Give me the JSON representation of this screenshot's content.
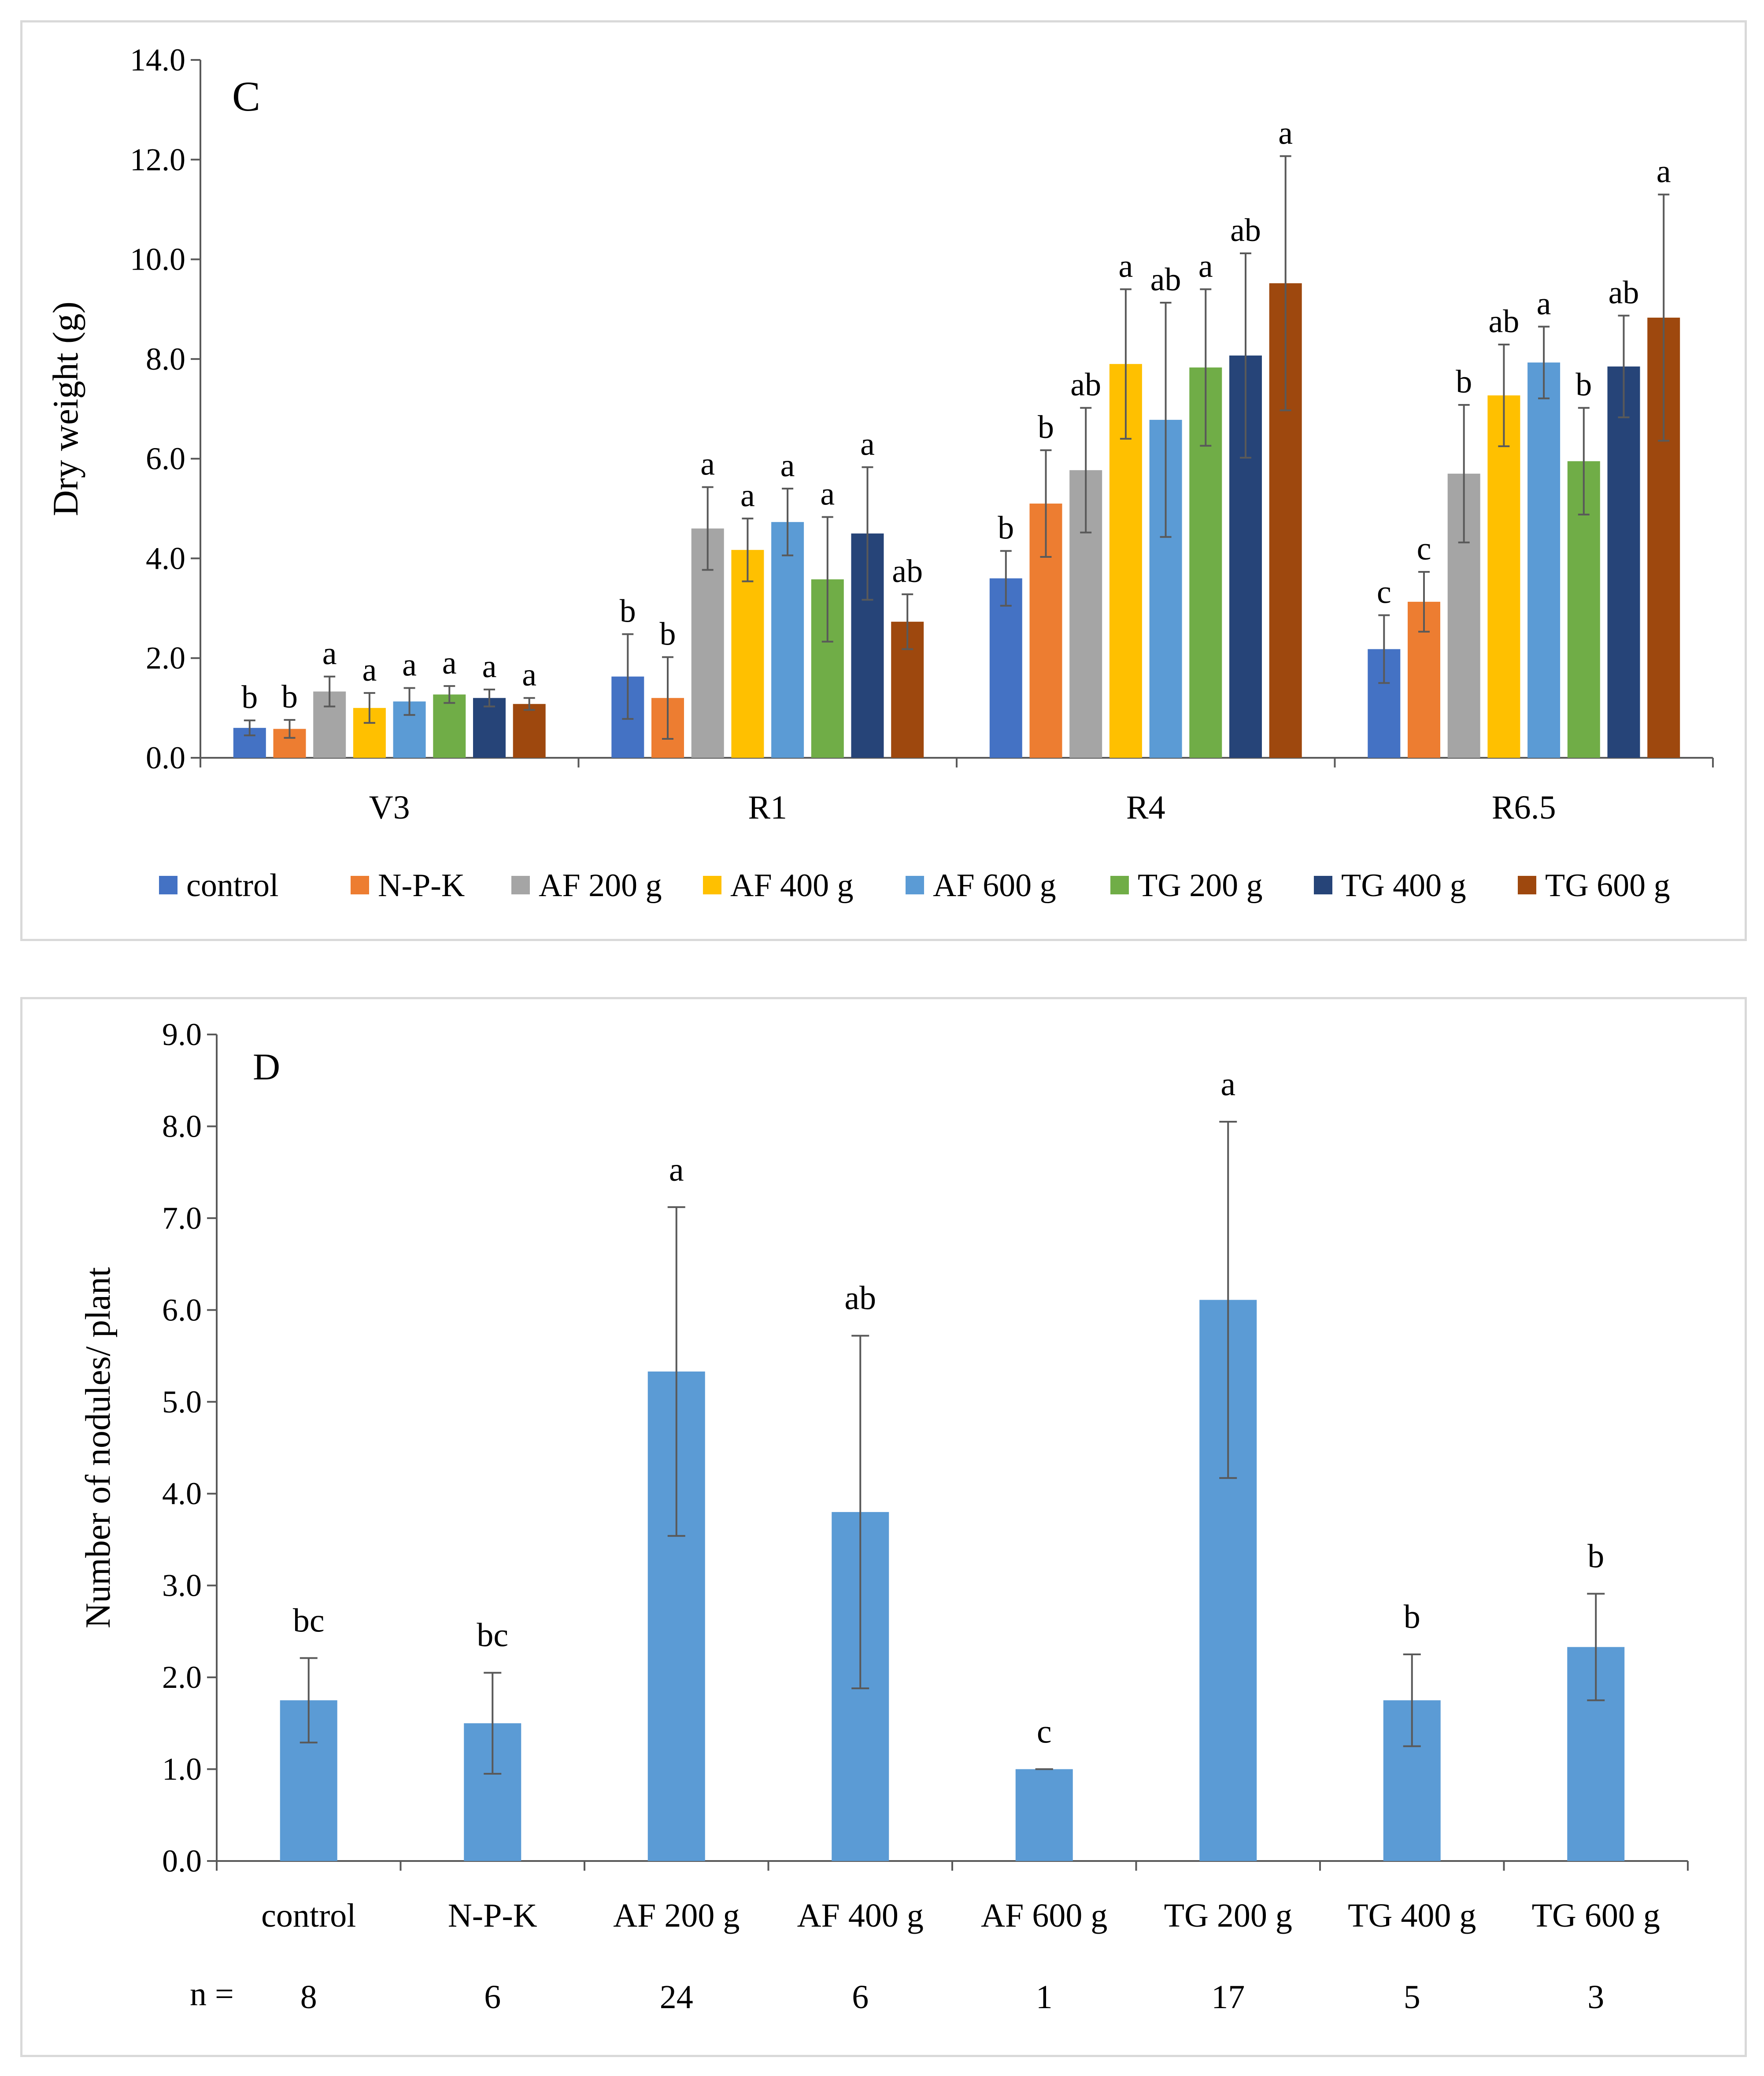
{
  "chart_data": [
    {
      "panel_label": "C",
      "type": "bar",
      "ylabel": "Dry weight (g)",
      "ylim": [
        0,
        14
      ],
      "yticks": [
        "0.0",
        "2.0",
        "4.0",
        "6.0",
        "8.0",
        "10.0",
        "12.0",
        "14.0"
      ],
      "categories": [
        "V3",
        "R1",
        "R4",
        "R6.5"
      ],
      "legend": "bottom",
      "series": [
        {
          "name": "control",
          "color": "#4472C4",
          "values": [
            0.6,
            1.63,
            3.6,
            2.18
          ],
          "errors": [
            0.15,
            0.85,
            0.55,
            0.68
          ],
          "letters": [
            "b",
            "b",
            "b",
            "c"
          ]
        },
        {
          "name": "N-P-K",
          "color": "#ED7D31",
          "values": [
            0.58,
            1.2,
            5.1,
            3.13
          ],
          "errors": [
            0.18,
            0.82,
            1.07,
            0.6
          ],
          "letters": [
            "b",
            "b",
            "b",
            "c"
          ]
        },
        {
          "name": "AF 200 g",
          "color": "#A5A5A5",
          "values": [
            1.33,
            4.6,
            5.77,
            5.7
          ],
          "errors": [
            0.3,
            0.83,
            1.25,
            1.38
          ],
          "letters": [
            "a",
            "a",
            "ab",
            "b"
          ]
        },
        {
          "name": "AF 400 g",
          "color": "#FFC000",
          "values": [
            1.0,
            4.17,
            7.9,
            7.27
          ],
          "errors": [
            0.3,
            0.63,
            1.5,
            1.02
          ],
          "letters": [
            "a",
            "a",
            "a",
            "ab"
          ]
        },
        {
          "name": "AF 600 g",
          "color": "#5B9BD5",
          "values": [
            1.13,
            4.73,
            6.78,
            7.93
          ],
          "errors": [
            0.27,
            0.67,
            2.35,
            0.72
          ],
          "letters": [
            "a",
            "a",
            "ab",
            "a"
          ]
        },
        {
          "name": "TG 200 g",
          "color": "#70AD47",
          "values": [
            1.27,
            3.58,
            7.83,
            5.95
          ],
          "errors": [
            0.17,
            1.25,
            1.57,
            1.07
          ],
          "letters": [
            "a",
            "a",
            "a",
            "b"
          ]
        },
        {
          "name": "TG 400 g",
          "color": "#264478",
          "values": [
            1.2,
            4.5,
            8.07,
            7.85
          ],
          "errors": [
            0.17,
            1.33,
            2.05,
            1.02
          ],
          "letters": [
            "a",
            "a",
            "ab",
            "ab"
          ]
        },
        {
          "name": "TG 600 g",
          "color": "#9E480E",
          "values": [
            1.08,
            2.73,
            9.52,
            8.83
          ],
          "errors": [
            0.12,
            0.55,
            2.55,
            2.47
          ],
          "letters": [
            "a",
            "ab",
            "a",
            "a"
          ]
        }
      ]
    },
    {
      "panel_label": "D",
      "type": "bar",
      "ylabel": "Number of nodules/ plant",
      "ylim": [
        0,
        9
      ],
      "yticks": [
        "0.0",
        "1.0",
        "2.0",
        "3.0",
        "4.0",
        "5.0",
        "6.0",
        "7.0",
        "8.0",
        "9.0"
      ],
      "color": "#5B9BD5",
      "categories": [
        "control",
        "N-P-K",
        "AF 200 g",
        "AF 400 g",
        "AF 600 g",
        "TG 200 g",
        "TG 400 g",
        "TG 600 g"
      ],
      "values": [
        1.75,
        1.5,
        5.33,
        3.8,
        1.0,
        6.11,
        1.75,
        2.33
      ],
      "errors": [
        0.46,
        0.55,
        1.79,
        1.92,
        0.0,
        1.94,
        0.5,
        0.58
      ],
      "letters": [
        "bc",
        "bc",
        "a",
        "ab",
        "c",
        "a",
        "b",
        "b"
      ],
      "n_label": "n =",
      "n_values": [
        "8",
        "6",
        "24",
        "6",
        "1",
        "17",
        "5",
        "3"
      ]
    }
  ]
}
